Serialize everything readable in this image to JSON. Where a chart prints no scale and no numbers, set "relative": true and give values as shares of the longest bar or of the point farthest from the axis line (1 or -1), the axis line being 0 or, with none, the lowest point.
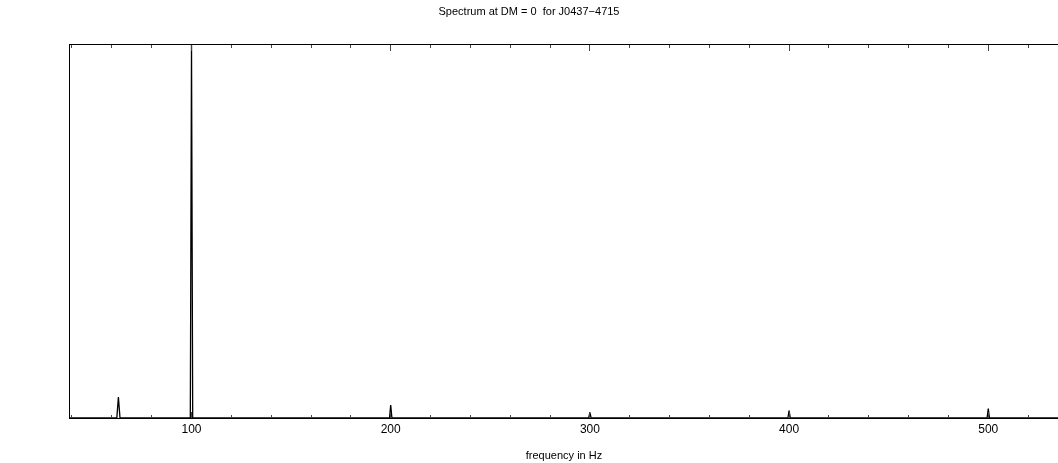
{
  "chart_data": {
    "type": "line",
    "title": "Spectrum at DM = 0  for J0437−4715",
    "xlabel": "frequency in Hz",
    "relative": true,
    "xlim": [
      39,
      535
    ],
    "xticks": [
      100,
      200,
      300,
      400,
      500
    ],
    "marker": "none",
    "line_style": "solid",
    "series": [
      {
        "color": "#000000",
        "x": [
          39,
          62.5,
          63.3,
          64.1,
          99.4,
          100,
          100.6,
          199.4,
          200,
          200.6,
          299.4,
          300,
          300.6,
          399.4,
          400,
          400.6,
          499.4,
          500,
          500.6,
          535
        ],
        "values": [
          0,
          0,
          0.056,
          0,
          0,
          1,
          0,
          0,
          0.035,
          0,
          0,
          0.015,
          0,
          0,
          0.02,
          0,
          0,
          0.025,
          0,
          0
        ]
      }
    ]
  }
}
